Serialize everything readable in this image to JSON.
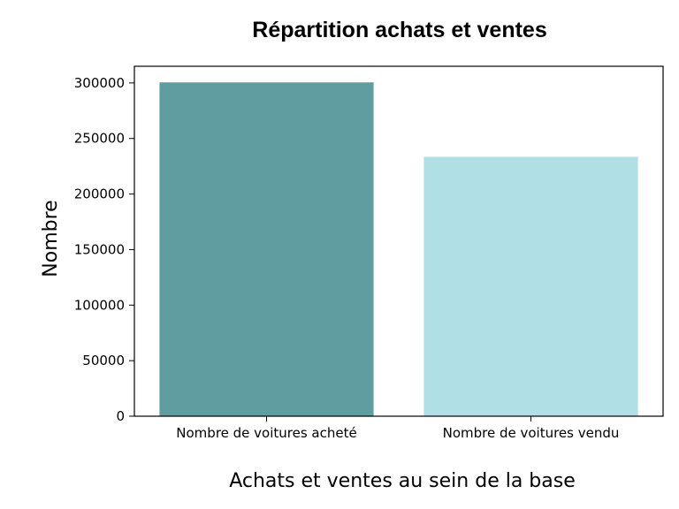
{
  "chart_data": {
    "type": "bar",
    "title": "Répartition achats et ventes",
    "xlabel": "Achats et ventes au sein de la base",
    "ylabel": "Nombre",
    "categories": [
      "Nombre de voitures acheté",
      "Nombre de voitures vendu"
    ],
    "values": [
      300500,
      233500
    ],
    "colors": [
      "#5f9ea0",
      "#b0dfe5"
    ],
    "ylim": [
      0,
      315000
    ],
    "yticks": [
      0,
      50000,
      100000,
      150000,
      200000,
      250000,
      300000
    ],
    "grid": false,
    "legend": "none"
  }
}
